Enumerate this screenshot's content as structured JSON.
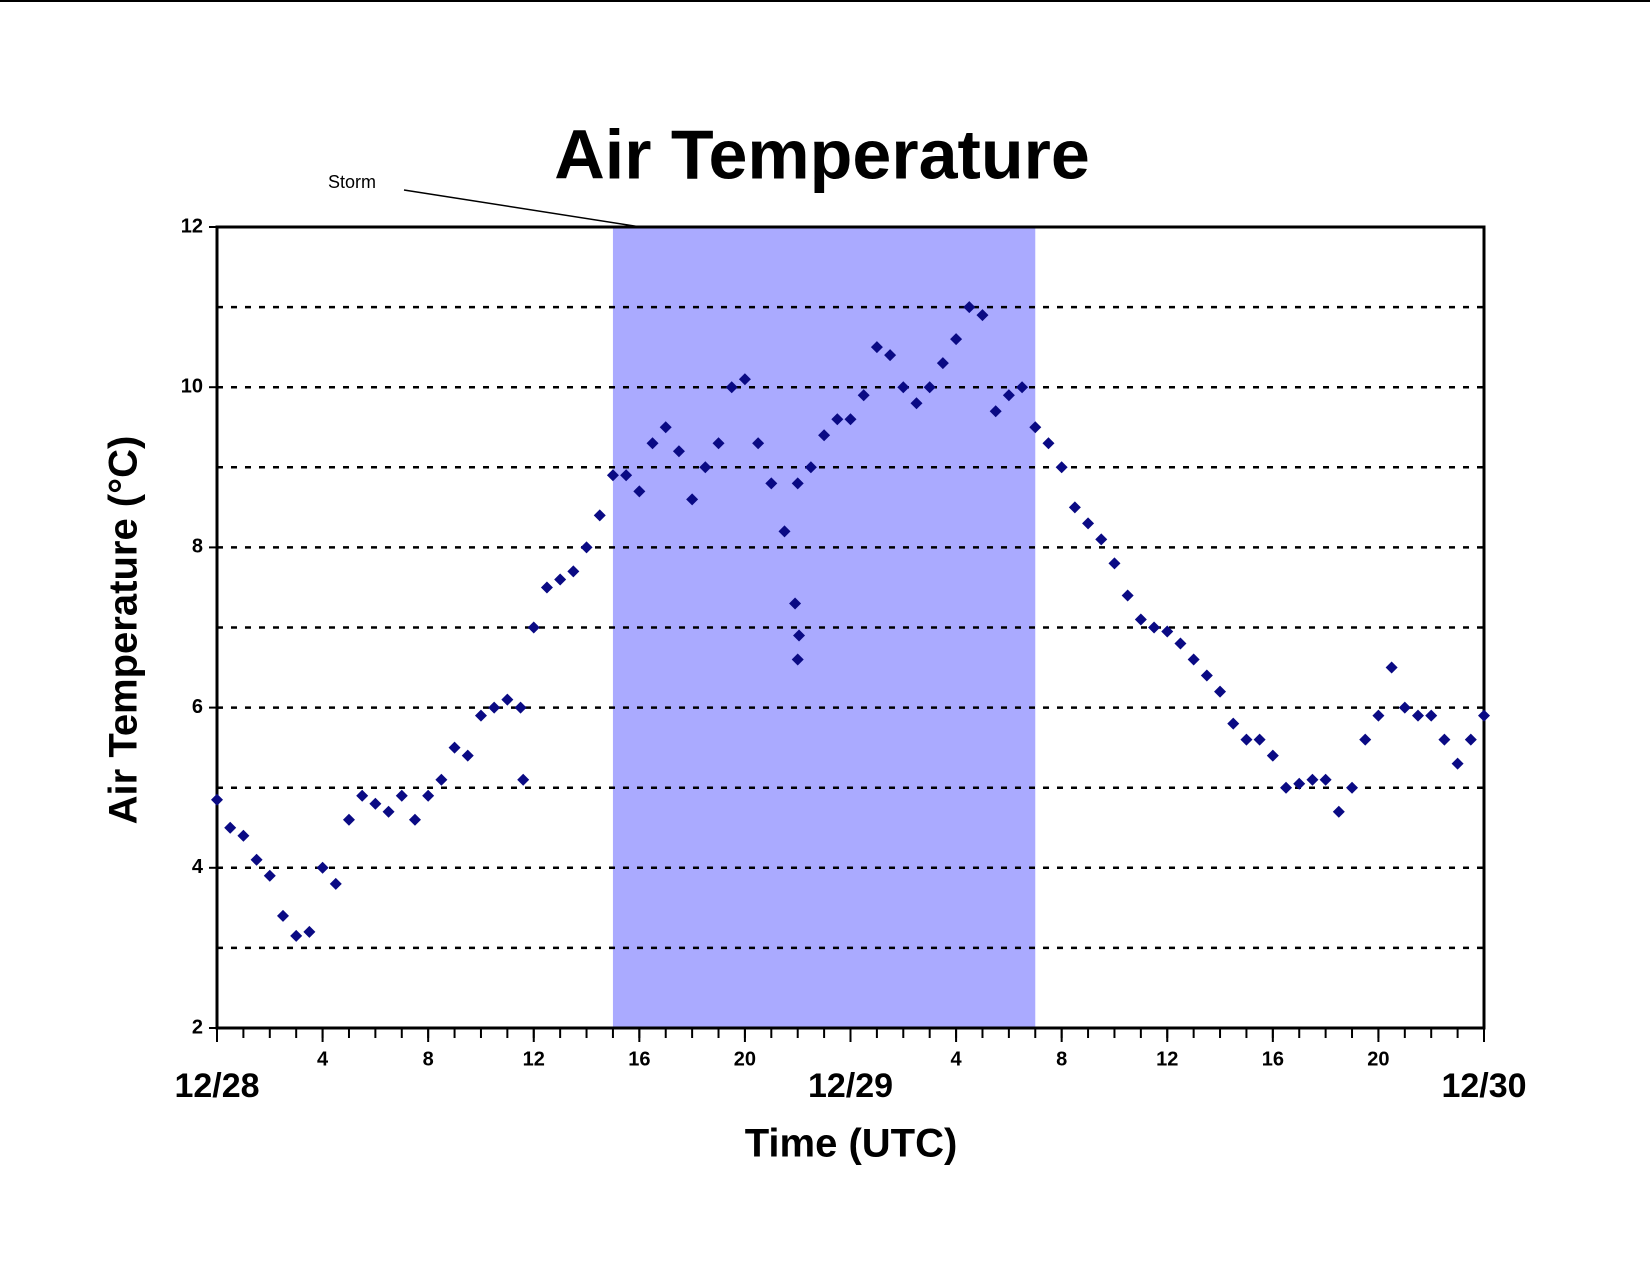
{
  "chart_data": {
    "type": "scatter",
    "title": "Air Temperature",
    "xlabel": "Time (UTC)",
    "ylabel": "Air Temperature (°C)",
    "annotation": {
      "text": "Storm",
      "x_start": 15,
      "x_end": 31,
      "color": "#aaaaff"
    },
    "series": [
      {
        "name": "Air Temperature",
        "color": "#0a0a84",
        "x": [
          0,
          0.5,
          1,
          1.5,
          2,
          2.5,
          3,
          3.5,
          4,
          4.5,
          5,
          5.5,
          6,
          6.5,
          7,
          7.5,
          8,
          8.5,
          9,
          9.5,
          10,
          10.5,
          11,
          11.5,
          12,
          12.5,
          13,
          13.5,
          14,
          14.5,
          15,
          15.5,
          16,
          16.5,
          17,
          17.5,
          18,
          18.5,
          19,
          19.5,
          20,
          20.5,
          21,
          21.5,
          22,
          22.5,
          23,
          23.5,
          24,
          24.5,
          25,
          25.5,
          26,
          26.5,
          27,
          27.5,
          28,
          28.5,
          29,
          29.5,
          30,
          30.5,
          31,
          31.5,
          32,
          32.5,
          33,
          33.5,
          34,
          34.5,
          35,
          35.5,
          36,
          36.5,
          37,
          37.5,
          38,
          38.5,
          39,
          39.5,
          40,
          40.5,
          41,
          41.5,
          42,
          42.5,
          43,
          43.5,
          44,
          44.5,
          45,
          45.5,
          46,
          46.5,
          47,
          47.5,
          48,
          21.9,
          22,
          22.05,
          11.6
        ],
        "values": [
          4.85,
          4.5,
          4.4,
          4.1,
          3.9,
          3.4,
          3.15,
          3.2,
          4.0,
          3.8,
          4.6,
          4.9,
          4.8,
          4.7,
          4.9,
          4.6,
          4.9,
          5.1,
          5.5,
          5.4,
          5.9,
          6.0,
          6.1,
          6.0,
          7.0,
          7.5,
          7.6,
          7.7,
          8.0,
          8.4,
          8.9,
          8.9,
          8.7,
          9.3,
          9.5,
          9.2,
          8.6,
          9.0,
          9.3,
          10.0,
          10.1,
          9.3,
          8.8,
          8.2,
          8.8,
          9.0,
          9.4,
          9.6,
          9.6,
          9.9,
          10.5,
          10.4,
          10.0,
          9.8,
          10.0,
          10.3,
          10.6,
          11.0,
          10.9,
          9.7,
          9.9,
          10.0,
          9.5,
          9.3,
          9.0,
          8.5,
          8.3,
          8.1,
          7.8,
          7.4,
          7.1,
          7.0,
          6.95,
          6.8,
          6.6,
          6.4,
          6.2,
          5.8,
          5.6,
          5.6,
          5.4,
          5.0,
          5.05,
          5.1,
          5.1,
          4.7,
          5.0,
          5.6,
          5.9,
          6.5,
          6.0,
          5.9,
          5.9,
          5.6,
          5.3,
          5.6,
          5.9,
          7.3,
          6.6,
          6.9,
          5.1
        ]
      }
    ],
    "xlim": [
      0,
      48
    ],
    "xticks": [
      4,
      8,
      12,
      16,
      20,
      {
        "value": 28,
        "label": "4"
      },
      {
        "value": 32,
        "label": "8"
      },
      {
        "value": 36,
        "label": "12"
      },
      {
        "value": 40,
        "label": "16"
      },
      {
        "value": 44,
        "label": "20"
      }
    ],
    "date_ticks": [
      {
        "value": 0,
        "label": "12/28"
      },
      {
        "value": 24,
        "label": "12/29"
      },
      {
        "value": 48,
        "label": "12/30"
      }
    ],
    "xminor_ticks": [
      0,
      1,
      2,
      3,
      4,
      5,
      6,
      7,
      8,
      9,
      10,
      11,
      12,
      13,
      14,
      15,
      16,
      17,
      18,
      19,
      20,
      21,
      22,
      23,
      24,
      25,
      26,
      27,
      28,
      29,
      30,
      31,
      32,
      33,
      34,
      35,
      36,
      37,
      38,
      39,
      40,
      41,
      42,
      43,
      44,
      45,
      46,
      47,
      48
    ],
    "ylim": [
      2,
      12
    ],
    "yticks": [
      2,
      4,
      6,
      8,
      10,
      12
    ],
    "ygrid": [
      3,
      4,
      5,
      6,
      7,
      8,
      9,
      10,
      11
    ],
    "grid": true
  }
}
